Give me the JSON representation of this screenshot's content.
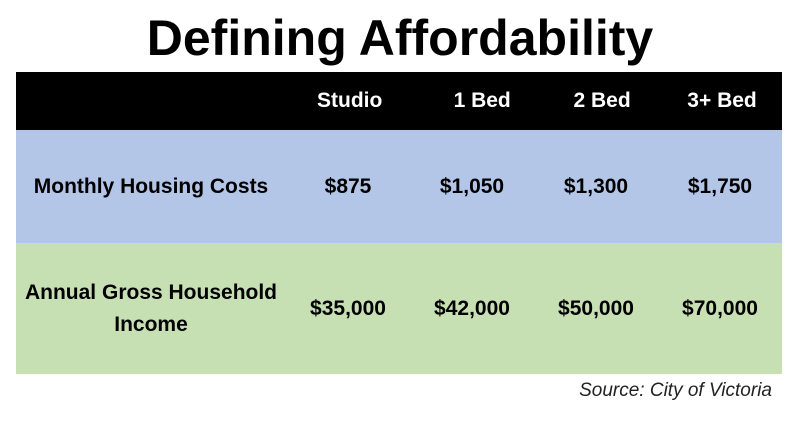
{
  "title": "Defining Affordability",
  "table": {
    "columns": [
      "Studio",
      "1 Bed",
      "2 Bed",
      "3+ Bed"
    ],
    "rows": [
      {
        "label": "Monthly Housing Costs",
        "values": [
          "$875",
          "$1,050",
          "$1,300",
          "$1,750"
        ]
      },
      {
        "label_line1": "Annual Gross Household",
        "label_line2": "Income",
        "values": [
          "$35,000",
          "$42,000",
          "$50,000",
          "$70,000"
        ]
      }
    ]
  },
  "source": "Source: City of Victoria",
  "colors": {
    "header_bg": "#000000",
    "costs_row_bg": "#b4c6e7",
    "income_row_bg": "#c6e0b4"
  }
}
